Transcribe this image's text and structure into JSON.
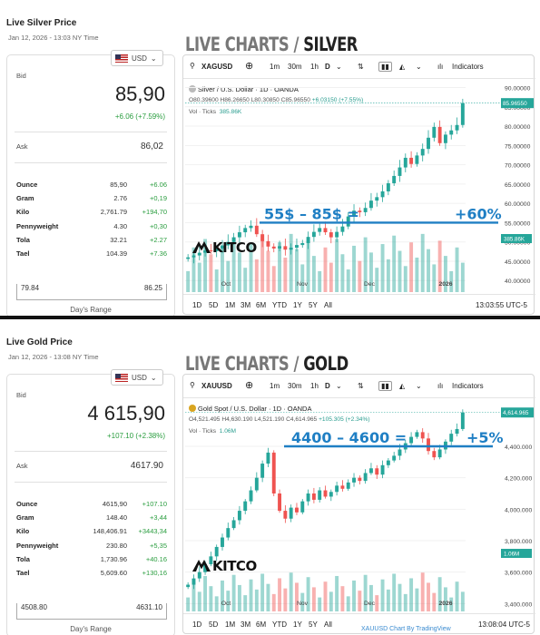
{
  "silver": {
    "title": "Live Silver Price",
    "date": "Jan 12, 2026 - 13:03 NY Time",
    "currency": "USD",
    "bid_label": "Bid",
    "bid": "85,90",
    "change": "+6.06 (+7.59%)",
    "ask_label": "Ask",
    "ask": "86,02",
    "units": [
      {
        "name": "Ounce",
        "price": "85,90",
        "change": "+6.06"
      },
      {
        "name": "Gram",
        "price": "2.76",
        "change": "+0,19"
      },
      {
        "name": "Kilo",
        "price": "2,761.79",
        "change": "+194,70"
      },
      {
        "name": "Pennyweight",
        "price": "4.30",
        "change": "+0,30"
      },
      {
        "name": "Tola",
        "price": "32.21",
        "change": "+2.27"
      },
      {
        "name": "Tael",
        "price": "104.39",
        "change": "+7.36"
      }
    ],
    "range_low": "79.84",
    "range_high": "86.25",
    "range_label": "Day's Range",
    "headline_a": "LIVE CHARTS / ",
    "headline_b": "SILVER",
    "symbol": "XAGUSD",
    "chart_title": "Silver / U.S. Dollar · 1D · OANDA",
    "ohlc_o": "O80.39600",
    "ohlc_h": "H86.26650",
    "ohlc_l": "L80.30850",
    "ohlc_c": "C85.96550",
    "ohlc_chg": "+6.03150 (+7.55%)",
    "vol_label": "Vol · Ticks",
    "vol_value": "385.86K",
    "time": "13:03:55 UTC-5",
    "annotation": "55$ – 85$ =",
    "annotation_pct": "+60%",
    "logo": "KITCO"
  },
  "gold": {
    "title": "Live Gold Price",
    "date": "Jan 12, 2026 - 13:08 NY Time",
    "currency": "USD",
    "bid_label": "Bid",
    "bid": "4 615,90",
    "change": "+107.10 (+2.38%)",
    "ask_label": "Ask",
    "ask": "4617.90",
    "units": [
      {
        "name": "Ounce",
        "price": "4615,90",
        "change": "+107.10"
      },
      {
        "name": "Gram",
        "price": "148.40",
        "change": "+3,44"
      },
      {
        "name": "Kilo",
        "price": "148,406.91",
        "change": "+3443,34"
      },
      {
        "name": "Pennyweight",
        "price": "230.80",
        "change": "+5,35"
      },
      {
        "name": "Tola",
        "price": "1,730.96",
        "change": "+40.16"
      },
      {
        "name": "Tael",
        "price": "5,609.60",
        "change": "+130,16"
      }
    ],
    "range_low": "4508.80",
    "range_high": "4631.10",
    "range_label": "Day's Range",
    "headline_a": "LIVE CHARTS / ",
    "headline_b": "GOLD",
    "symbol": "XAUUSD",
    "chart_title": "Gold Spot / U.S. Dollar · 1D · OANDA",
    "ohlc_o": "O4,521.495",
    "ohlc_h": "H4,630.190",
    "ohlc_l": "L4,521.190",
    "ohlc_c": "C4,614.965",
    "ohlc_chg": "+105.305 (+2.34%)",
    "vol_label": "Vol · Ticks",
    "vol_value": "1.06M",
    "time": "13:08:04 UTC-5",
    "annotation": "4400 – 4600 =",
    "annotation_pct": "+5%",
    "logo": "KITCO",
    "watermark": "XAUUSD Chart By TradingView"
  },
  "toolbar": {
    "intervals": [
      "1m",
      "30m",
      "1h",
      "D"
    ],
    "indicators": "Indicators"
  },
  "ranges": [
    "1D",
    "5D",
    "1M",
    "3M",
    "6M",
    "YTD",
    "1Y",
    "5Y",
    "All"
  ],
  "colors": {
    "up": "#26a69a",
    "down": "#ef5350",
    "annotation": "#1f7fc4",
    "positive": "#2a9d3f"
  },
  "chart_data": [
    {
      "type": "candlestick",
      "title": "Silver / U.S. Dollar · 1D · OANDA",
      "x_ticks": [
        "Oct",
        "Nov",
        "Dec",
        "2026"
      ],
      "y_ticks": [
        40,
        45,
        50,
        55,
        60,
        65,
        70,
        75,
        80,
        85,
        90
      ],
      "ylim": [
        37,
        92
      ],
      "last_price": 85.9655,
      "volume_last": "385.86K",
      "close_series": [
        46.0,
        46.5,
        47.2,
        47.8,
        47.6,
        48.3,
        49.1,
        50.0,
        51.2,
        52.5,
        53.6,
        54.2,
        52.0,
        50.2,
        48.8,
        48.3,
        48.9,
        48.0,
        48.5,
        49.2,
        49.7,
        51.3,
        52.6,
        53.6,
        52.5,
        51.2,
        52.6,
        54.0,
        56.6,
        58.1,
        57.7,
        58.8,
        60.7,
        61.6,
        63.1,
        65.2,
        67.1,
        69.3,
        71.8,
        70.2,
        72.4,
        74.1,
        77.0,
        79.8,
        75.6,
        77.8,
        78.9,
        80.3,
        85.96
      ]
    },
    {
      "type": "candlestick",
      "title": "Gold Spot / U.S. Dollar · 1D · OANDA",
      "x_ticks": [
        "Oct",
        "Nov",
        "Dec",
        "2026"
      ],
      "y_ticks": [
        3400,
        3600,
        3800,
        4000,
        4200,
        4400
      ],
      "ylim": [
        3350,
        4700
      ],
      "last_price": 4614.965,
      "volume_last": "1.06M",
      "close_series": [
        3520,
        3560,
        3600,
        3650,
        3700,
        3760,
        3820,
        3880,
        3930,
        3990,
        4050,
        4120,
        4200,
        4290,
        4360,
        4100,
        3990,
        3940,
        4010,
        3980,
        4050,
        4100,
        4060,
        4120,
        4080,
        4110,
        4150,
        4130,
        4170,
        4200,
        4180,
        4230,
        4260,
        4220,
        4280,
        4310,
        4340,
        4380,
        4420,
        4460,
        4490,
        4450,
        4370,
        4330,
        4380,
        4430,
        4480,
        4510,
        4615
      ]
    }
  ]
}
